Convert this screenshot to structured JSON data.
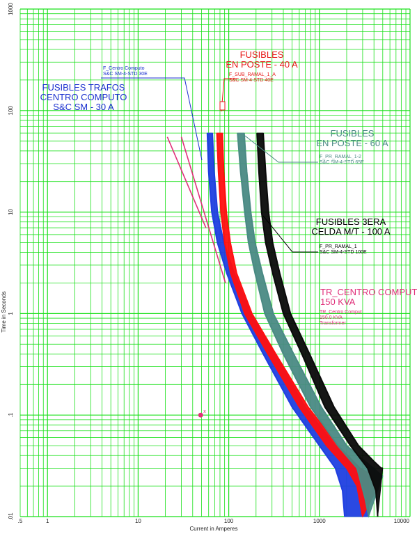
{
  "chart_data": {
    "type": "line",
    "title": "",
    "xlabel": "Current in Amperes",
    "ylabel": "Time in Seconds",
    "xscale": "log",
    "yscale": "log",
    "xlim": [
      0.5,
      10000
    ],
    "ylim": [
      0.01,
      1000
    ],
    "grid": true,
    "grid_color": "#19e019",
    "x_ticks": [
      {
        "value": 0.5,
        "label": ".5"
      },
      {
        "value": 1,
        "label": "1"
      },
      {
        "value": 10,
        "label": "10"
      },
      {
        "value": 100,
        "label": "100"
      },
      {
        "value": 1000,
        "label": "1000"
      },
      {
        "value": 10000,
        "label": "10000"
      }
    ],
    "y_ticks": [
      {
        "value": 0.01,
        "label": ".01"
      },
      {
        "value": 0.1,
        "label": ".1"
      },
      {
        "value": 1,
        "label": "1"
      },
      {
        "value": 10,
        "label": "10"
      },
      {
        "value": 100,
        "label": "100"
      },
      {
        "value": 1000,
        "label": "1000"
      }
    ],
    "series": [
      {
        "color": "#1f3fe0",
        "min": [
          [
            58,
            60
          ],
          [
            60,
            25
          ],
          [
            65,
            10
          ],
          [
            75,
            5
          ],
          [
            95,
            2.5
          ],
          [
            140,
            1
          ],
          [
            240,
            0.4
          ],
          [
            500,
            0.12
          ],
          [
            1000,
            0.05
          ],
          [
            1500,
            0.03
          ],
          [
            1800,
            0.018
          ],
          [
            1900,
            0.01
          ]
        ],
        "max": [
          [
            66,
            60
          ],
          [
            69,
            25
          ],
          [
            75,
            10
          ],
          [
            88,
            5
          ],
          [
            115,
            2.5
          ],
          [
            175,
            1
          ],
          [
            320,
            0.4
          ],
          [
            700,
            0.12
          ],
          [
            1500,
            0.05
          ],
          [
            2500,
            0.03
          ],
          [
            3500,
            0.025
          ],
          [
            3500,
            0.01
          ]
        ]
      },
      {
        "color": "#ff1010",
        "min": [
          [
            74,
            60
          ],
          [
            77,
            25
          ],
          [
            82,
            10
          ],
          [
            90,
            5
          ],
          [
            105,
            2.5
          ],
          [
            150,
            1
          ],
          [
            270,
            0.4
          ],
          [
            600,
            0.12
          ],
          [
            1200,
            0.05
          ],
          [
            2000,
            0.03
          ],
          [
            2600,
            0.02
          ],
          [
            3000,
            0.01
          ]
        ],
        "max": [
          [
            85,
            60
          ],
          [
            88,
            25
          ],
          [
            94,
            10
          ],
          [
            104,
            5
          ],
          [
            122,
            2.5
          ],
          [
            180,
            1
          ],
          [
            330,
            0.4
          ],
          [
            750,
            0.12
          ],
          [
            1600,
            0.05
          ],
          [
            2800,
            0.03
          ],
          [
            4000,
            0.025
          ],
          [
            4500,
            0.02
          ]
        ]
      },
      {
        "color": "#4a8a84",
        "min": [
          [
            125,
            60
          ],
          [
            135,
            25
          ],
          [
            150,
            10
          ],
          [
            165,
            5
          ],
          [
            195,
            2.5
          ],
          [
            250,
            1
          ],
          [
            400,
            0.4
          ],
          [
            800,
            0.12
          ],
          [
            1600,
            0.05
          ],
          [
            2600,
            0.03
          ],
          [
            3200,
            0.015
          ],
          [
            3500,
            0.01
          ]
        ],
        "max": [
          [
            148,
            60
          ],
          [
            158,
            25
          ],
          [
            175,
            10
          ],
          [
            195,
            5
          ],
          [
            235,
            2.5
          ],
          [
            310,
            1
          ],
          [
            520,
            0.4
          ],
          [
            1050,
            0.12
          ],
          [
            2000,
            0.05
          ],
          [
            3200,
            0.035
          ],
          [
            4300,
            0.028
          ],
          [
            5000,
            0.025
          ]
        ]
      },
      {
        "color": "#0a0a0a",
        "min": [
          [
            205,
            60
          ],
          [
            215,
            25
          ],
          [
            230,
            10
          ],
          [
            255,
            5
          ],
          [
            305,
            2.5
          ],
          [
            400,
            1
          ],
          [
            640,
            0.4
          ],
          [
            1150,
            0.12
          ],
          [
            2200,
            0.05
          ],
          [
            3400,
            0.03
          ],
          [
            4200,
            0.018
          ],
          [
            4400,
            0.01
          ]
        ],
        "max": [
          [
            240,
            60
          ],
          [
            255,
            25
          ],
          [
            275,
            10
          ],
          [
            305,
            5
          ],
          [
            365,
            2.5
          ],
          [
            480,
            1
          ],
          [
            780,
            0.4
          ],
          [
            1450,
            0.12
          ],
          [
            2700,
            0.05
          ],
          [
            4000,
            0.035
          ],
          [
            4800,
            0.03
          ],
          [
            5000,
            0.03
          ]
        ]
      }
    ],
    "transformer_lines": {
      "color": "#e0307a",
      "lines": [
        [
          [
            21,
            55
          ],
          [
            56,
            7
          ]
        ],
        [
          [
            30,
            55
          ],
          [
            92,
            2
          ]
        ]
      ]
    },
    "inrush_point": {
      "x": 49,
      "y": 0.1,
      "color": "#e0307a",
      "label": "x"
    },
    "annotations": [
      {
        "id": "fus-trafos",
        "lines": [
          "FUSIBLES TRAFOS",
          "CENTRO COMPUTO",
          "S&C SM - 30 A"
        ],
        "color": "#1a2fcf",
        "size": "big",
        "x": 120,
        "y": 130,
        "anchor": "middle"
      },
      {
        "id": "f-centro",
        "lines": [
          "F_Centro Computo",
          "S&C SM-4-STD 30E"
        ],
        "color": "#1a2fcf",
        "size": "small",
        "x": 148,
        "y": 100,
        "anchor": "start"
      },
      {
        "id": "fus-poste-40",
        "lines": [
          "FUSIBLES",
          "EN POSTE - 40 A"
        ],
        "color": "#e81818",
        "size": "big",
        "x": 376,
        "y": 83,
        "anchor": "middle"
      },
      {
        "id": "f-sub-ramal",
        "lines": [
          "F_SUB_RAMAL_1_A",
          "S&C SM-4-STD 40E"
        ],
        "color": "#e81818",
        "size": "small",
        "x": 329,
        "y": 109,
        "anchor": "start"
      },
      {
        "id": "fus-poste-60",
        "lines": [
          "FUSIBLES",
          "EN POSTE - 60 A"
        ],
        "color": "#4a8a84",
        "size": "big",
        "x": 506,
        "y": 196,
        "anchor": "middle"
      },
      {
        "id": "f-pr-ramal-12",
        "lines": [
          "F_PR_RAMAL_1-2",
          "S&C SM-4-STD 65E"
        ],
        "color": "#4a8a84",
        "size": "small",
        "x": 459,
        "y": 227,
        "anchor": "start"
      },
      {
        "id": "fus-3era",
        "lines": [
          "FUSIBLES 3ERA",
          "CELDA M/T - 100 A"
        ],
        "color": "#000000",
        "size": "big",
        "x": 504,
        "y": 323,
        "anchor": "middle"
      },
      {
        "id": "f-pr-ramal-1",
        "lines": [
          "F_PR_RAMAL_1",
          "S&C SM-4-STD 100E"
        ],
        "color": "#000000",
        "size": "small",
        "x": 459,
        "y": 356,
        "anchor": "start"
      },
      {
        "id": "tr-centro",
        "lines": [
          "TR_CENTRO COMPUTO",
          "150 KVA"
        ],
        "color": "#e0307a",
        "size": "big",
        "x": 460,
        "y": 424,
        "anchor": "start"
      },
      {
        "id": "tr-centro-small",
        "lines": [
          "TR_Centro Comput",
          "150.0 KVA",
          "Transformer"
        ],
        "color": "#e0307a",
        "size": "small",
        "x": 459,
        "y": 450,
        "anchor": "start"
      }
    ]
  }
}
